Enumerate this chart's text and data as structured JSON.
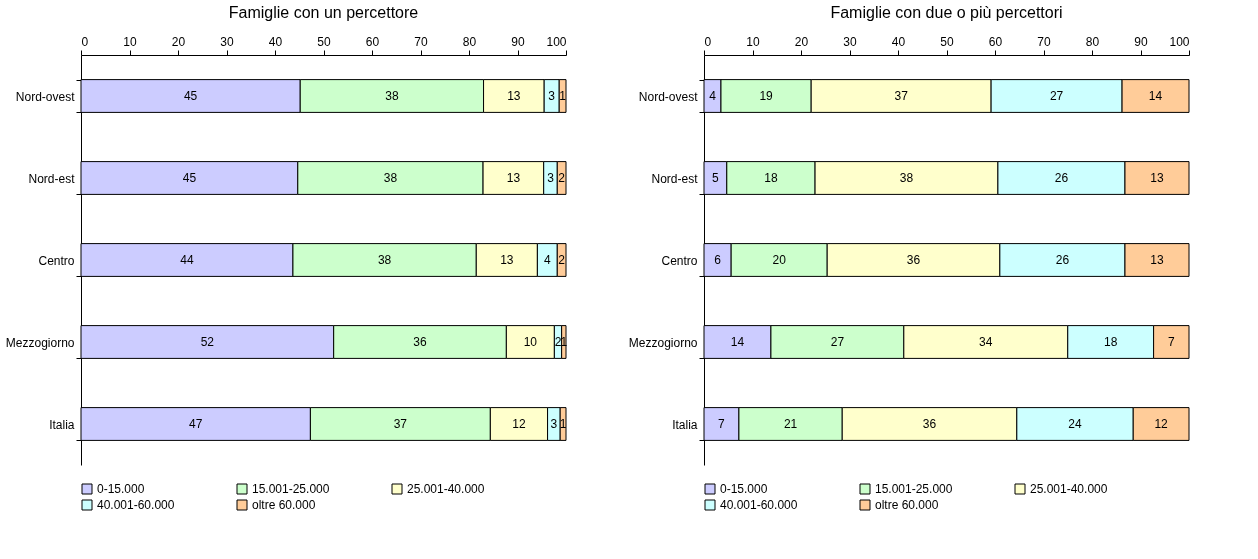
{
  "chart_data": [
    {
      "type": "bar",
      "orientation": "horizontal",
      "stacked": true,
      "title": "Famiglie con un percettore",
      "categories": [
        "Nord-ovest",
        "Nord-est",
        "Centro",
        "Mezzogiorno",
        "Italia"
      ],
      "xlim": [
        0,
        100
      ],
      "xticks": [
        0,
        10,
        20,
        30,
        40,
        50,
        60,
        70,
        80,
        90,
        100
      ],
      "grid": false,
      "legend": "bottom",
      "series": [
        {
          "name": "0-15.000",
          "color": "#ccccff",
          "values": [
            45.2,
            44.7,
            43.7,
            52.1,
            47.3
          ],
          "value_labels": [
            "45",
            "45",
            "44",
            "52",
            "47"
          ]
        },
        {
          "name": "15.001-25.000",
          "color": "#ccffcc",
          "values": [
            37.8,
            38.2,
            37.8,
            35.6,
            37.1
          ],
          "value_labels": [
            "38",
            "38",
            "38",
            "36",
            "37"
          ]
        },
        {
          "name": "25.001-40.000",
          "color": "#ffffcc",
          "values": [
            12.5,
            12.5,
            12.6,
            9.9,
            11.8
          ],
          "value_labels": [
            "13",
            "13",
            "13",
            "10",
            "12"
          ]
        },
        {
          "name": "40.001-60.000",
          "color": "#ccffff",
          "values": [
            3.1,
            2.8,
            4.1,
            1.5,
            2.6
          ],
          "value_labels": [
            "3",
            "3",
            "4",
            "2",
            "3"
          ]
        },
        {
          "name": "oltre 60.000",
          "color": "#ffcc99",
          "values": [
            1.4,
            1.8,
            1.8,
            0.9,
            1.2
          ],
          "value_labels": [
            "1",
            "2",
            "2",
            "1",
            "1"
          ]
        }
      ]
    },
    {
      "type": "bar",
      "orientation": "horizontal",
      "stacked": true,
      "title": "Famiglie con due o più percettori",
      "categories": [
        "Nord-ovest",
        "Nord-est",
        "Centro",
        "Mezzogiorno",
        "Italia"
      ],
      "xlim": [
        0,
        100
      ],
      "xticks": [
        0,
        10,
        20,
        30,
        40,
        50,
        60,
        70,
        80,
        90,
        100
      ],
      "grid": false,
      "legend": "bottom",
      "series": [
        {
          "name": "0-15.000",
          "color": "#ccccff",
          "values": [
            3.5,
            4.7,
            5.6,
            13.8,
            7.2
          ],
          "value_labels": [
            "4",
            "5",
            "6",
            "14",
            "7"
          ]
        },
        {
          "name": "15.001-25.000",
          "color": "#ccffcc",
          "values": [
            18.6,
            18.2,
            19.8,
            27.4,
            21.3
          ],
          "value_labels": [
            "19",
            "18",
            "20",
            "27",
            "21"
          ]
        },
        {
          "name": "25.001-40.000",
          "color": "#ffffcc",
          "values": [
            37.1,
            37.7,
            35.6,
            33.8,
            36.0
          ],
          "value_labels": [
            "37",
            "38",
            "36",
            "34",
            "36"
          ]
        },
        {
          "name": "40.001-60.000",
          "color": "#ccffff",
          "values": [
            27.0,
            26.2,
            25.8,
            17.7,
            24.0
          ],
          "value_labels": [
            "27",
            "26",
            "26",
            "18",
            "24"
          ]
        },
        {
          "name": "oltre 60.000",
          "color": "#ffcc99",
          "values": [
            13.8,
            13.2,
            13.2,
            7.3,
            11.5
          ],
          "value_labels": [
            "14",
            "13",
            "13",
            "7",
            "12"
          ]
        }
      ]
    }
  ]
}
